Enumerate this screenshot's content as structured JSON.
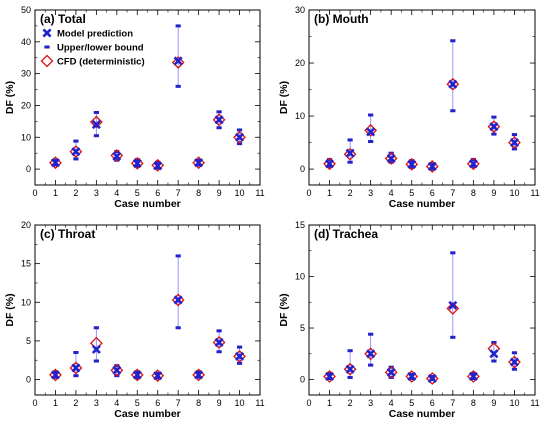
{
  "colors": {
    "model": "#2222cc",
    "cfd": "#dd1111",
    "whisker": "#8a8aff",
    "axis": "#000000"
  },
  "legend": {
    "model": "Model prediction",
    "bound": "Upper/lower bound",
    "cfd": "CFD (deterministic)"
  },
  "chart_data": [
    {
      "type": "scatter",
      "title": "(a) Total",
      "xlabel": "Case number",
      "ylabel": "DF (%)",
      "xlim": [
        0,
        11
      ],
      "ylim": [
        -5,
        50
      ],
      "yticks": [
        0,
        10,
        20,
        30,
        40,
        50
      ],
      "xticks": [
        0,
        1,
        2,
        3,
        4,
        5,
        6,
        7,
        8,
        9,
        10,
        11
      ],
      "legend_position": "top-left",
      "cases": [
        1,
        2,
        3,
        4,
        5,
        6,
        7,
        8,
        9,
        10
      ],
      "model": [
        2.0,
        5.5,
        14.0,
        4.0,
        1.8,
        1.0,
        34.0,
        2.0,
        15.5,
        10.0
      ],
      "upper": [
        2.8,
        8.8,
        17.8,
        5.5,
        3.0,
        2.2,
        45.0,
        2.8,
        18.0,
        12.3
      ],
      "lower": [
        1.3,
        3.2,
        10.5,
        2.8,
        0.8,
        0.3,
        26.0,
        1.3,
        13.0,
        8.0
      ],
      "cfd": [
        2.0,
        5.5,
        14.8,
        4.3,
        1.8,
        1.2,
        33.5,
        2.0,
        15.5,
        10.0
      ]
    },
    {
      "type": "scatter",
      "title": "(b) Mouth",
      "xlabel": "Case number",
      "ylabel": "DF (%)",
      "xlim": [
        0,
        11
      ],
      "ylim": [
        -3,
        30
      ],
      "yticks": [
        0,
        10,
        20,
        30
      ],
      "xticks": [
        0,
        1,
        2,
        3,
        4,
        5,
        6,
        7,
        8,
        9,
        10,
        11
      ],
      "cases": [
        1,
        2,
        3,
        4,
        5,
        6,
        7,
        8,
        9,
        10
      ],
      "model": [
        1.0,
        3.0,
        7.0,
        2.0,
        0.9,
        0.5,
        16.0,
        1.0,
        8.0,
        5.0
      ],
      "upper": [
        1.8,
        5.5,
        10.2,
        3.0,
        1.6,
        1.0,
        24.2,
        1.8,
        9.8,
        6.5
      ],
      "lower": [
        0.5,
        1.3,
        5.2,
        1.3,
        0.3,
        0.0,
        11.0,
        0.5,
        6.6,
        3.8
      ],
      "cfd": [
        1.0,
        2.8,
        7.3,
        2.0,
        0.9,
        0.5,
        16.0,
        1.0,
        8.0,
        5.0
      ]
    },
    {
      "type": "scatter",
      "title": "(c) Throat",
      "xlabel": "Case number",
      "ylabel": "DF (%)",
      "xlim": [
        0,
        11
      ],
      "ylim": [
        -2,
        20
      ],
      "yticks": [
        0,
        5,
        10,
        15,
        20
      ],
      "xticks": [
        0,
        1,
        2,
        3,
        4,
        5,
        6,
        7,
        8,
        9,
        10,
        11
      ],
      "cases": [
        1,
        2,
        3,
        4,
        5,
        6,
        7,
        8,
        9,
        10
      ],
      "model": [
        0.6,
        1.5,
        3.9,
        1.2,
        0.6,
        0.5,
        10.3,
        0.6,
        4.8,
        3.0
      ],
      "upper": [
        1.0,
        3.5,
        6.7,
        1.8,
        1.0,
        0.8,
        16.0,
        1.0,
        6.3,
        4.2
      ],
      "lower": [
        0.3,
        0.5,
        2.4,
        0.5,
        0.2,
        0.2,
        6.7,
        0.3,
        3.6,
        2.1
      ],
      "cfd": [
        0.6,
        1.5,
        4.7,
        1.2,
        0.6,
        0.5,
        10.3,
        0.6,
        4.8,
        3.0
      ]
    },
    {
      "type": "scatter",
      "title": "(d) Trachea",
      "xlabel": "Case number",
      "ylabel": "DF (%)",
      "xlim": [
        0,
        11
      ],
      "ylim": [
        -1.5,
        15
      ],
      "yticks": [
        0,
        5,
        10,
        15
      ],
      "xticks": [
        0,
        1,
        2,
        3,
        4,
        5,
        6,
        7,
        8,
        9,
        10,
        11
      ],
      "cases": [
        1,
        2,
        3,
        4,
        5,
        6,
        7,
        8,
        9,
        10
      ],
      "model": [
        0.3,
        1.0,
        2.5,
        0.7,
        0.3,
        0.1,
        7.2,
        0.3,
        2.5,
        1.7
      ],
      "upper": [
        0.6,
        2.8,
        4.4,
        1.2,
        0.5,
        0.3,
        12.3,
        0.6,
        3.6,
        2.6
      ],
      "lower": [
        0.1,
        0.2,
        1.4,
        0.2,
        0.1,
        0.0,
        4.1,
        0.1,
        1.8,
        1.0
      ],
      "cfd": [
        0.3,
        1.0,
        2.5,
        0.7,
        0.3,
        0.1,
        6.9,
        0.3,
        3.0,
        1.7
      ]
    }
  ]
}
